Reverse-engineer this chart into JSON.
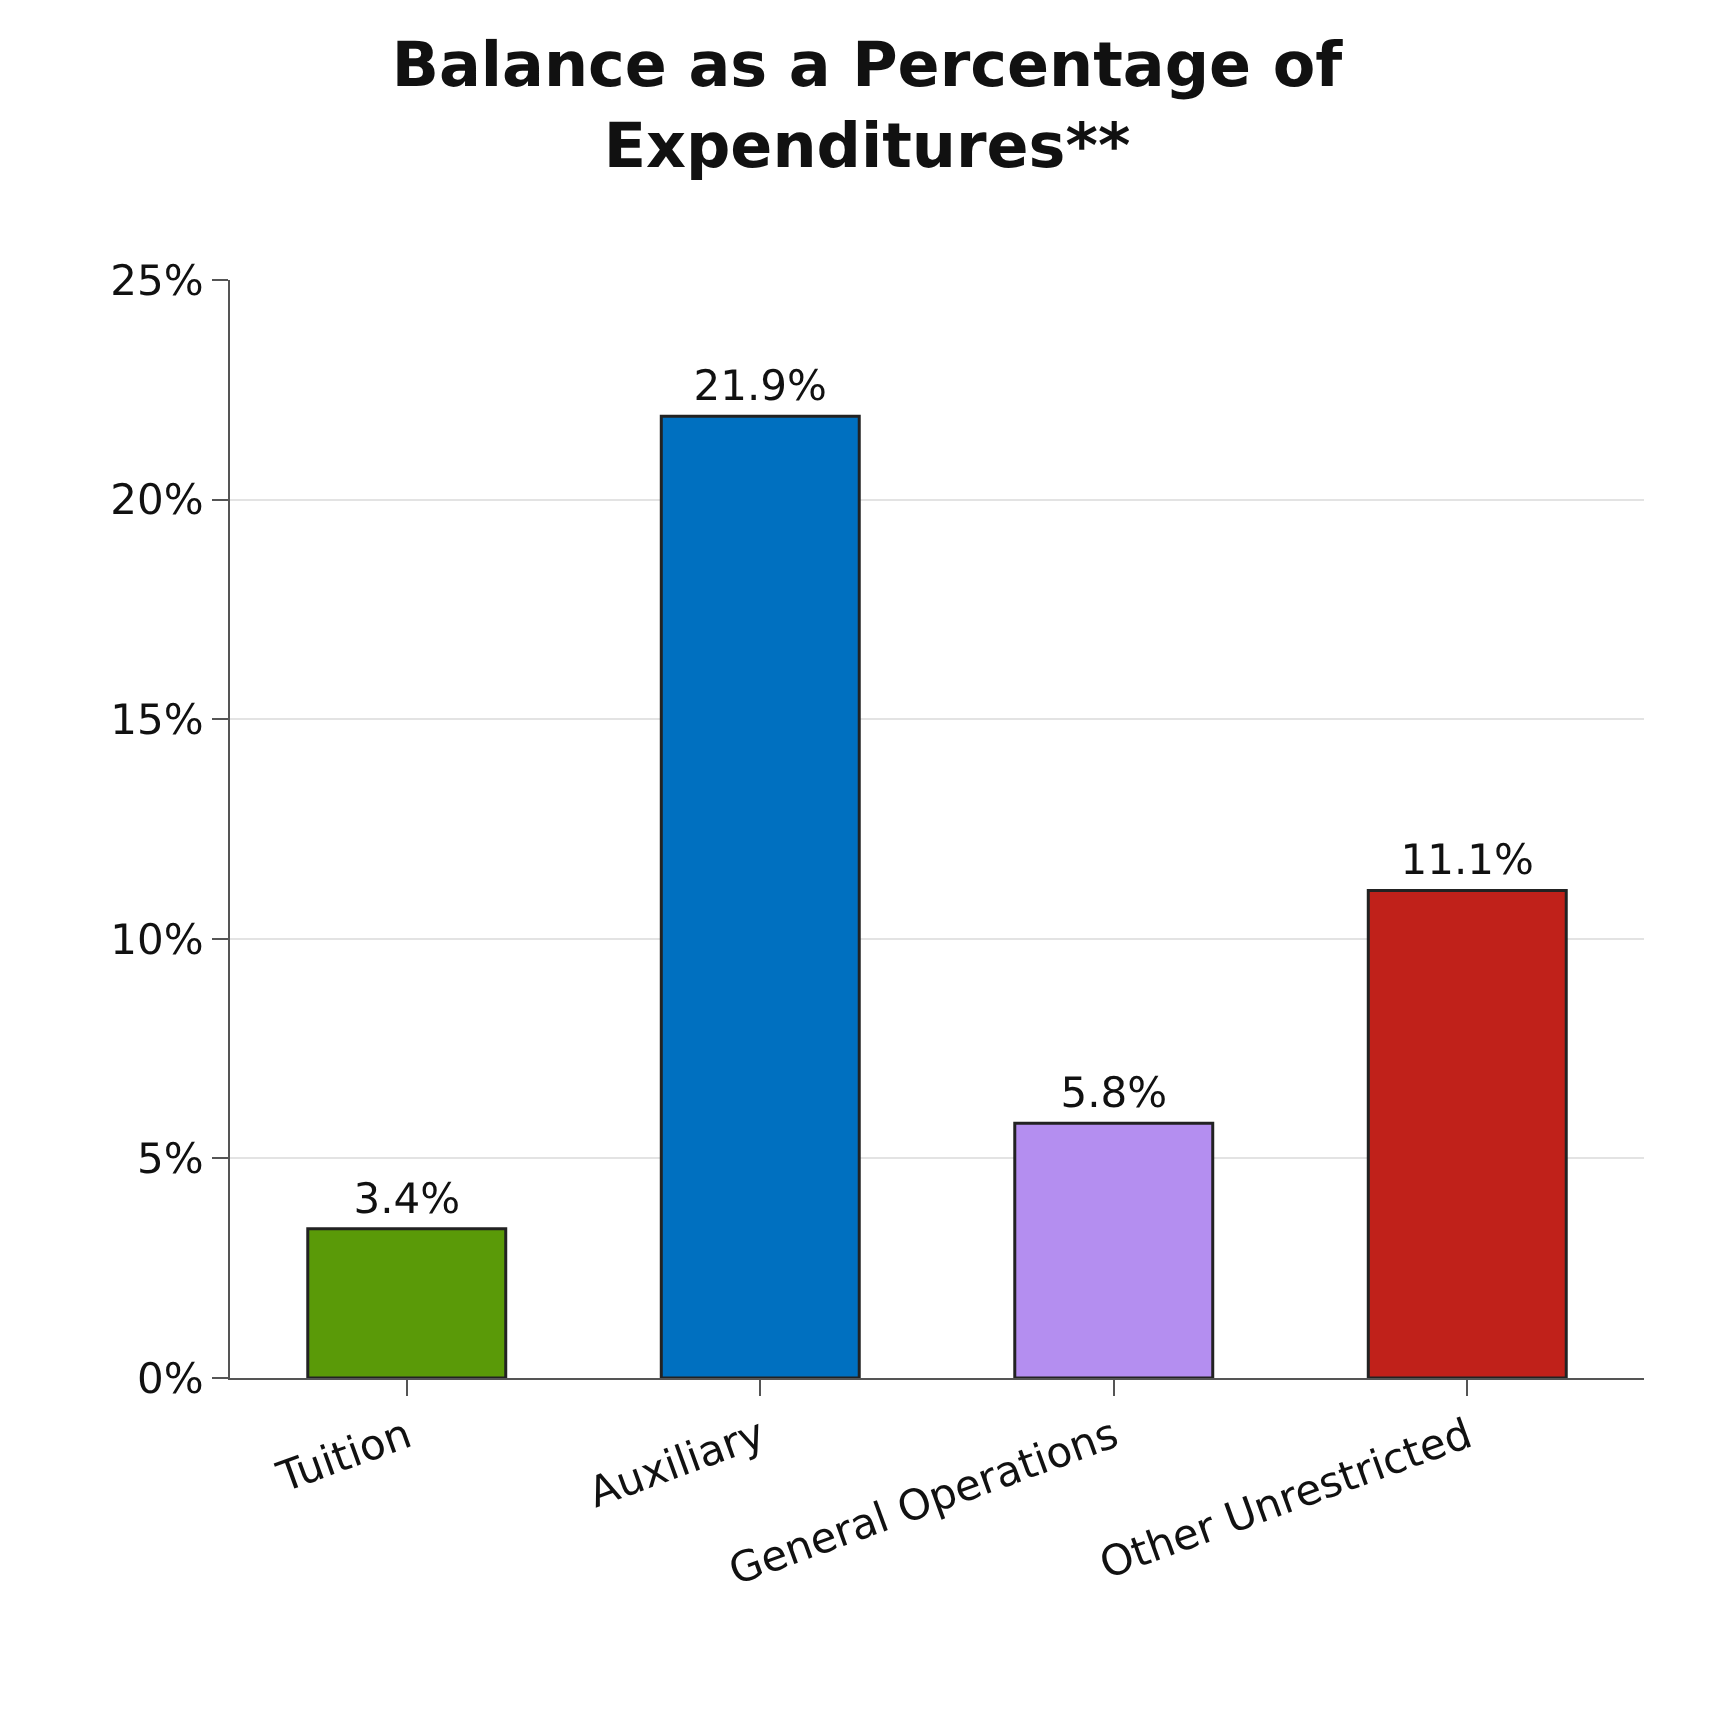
{
  "chart_data": {
    "type": "bar",
    "title": "Balance as a Percentage of Expenditures**",
    "categories": [
      "Tuition",
      "Auxiliary",
      "General Operations",
      "Other Unrestricted"
    ],
    "values": [
      3.4,
      21.9,
      5.8,
      11.1
    ],
    "colors": [
      "#5a9a08",
      "#0070c0",
      "#b48ef0",
      "#c0211a"
    ],
    "value_labels": [
      "3.4%",
      "21.9%",
      "5.8%",
      "11.1%"
    ],
    "ylim": [
      0,
      25
    ],
    "yticks": [
      {
        "value": 0,
        "label": "0%"
      },
      {
        "value": 5,
        "label": "5%"
      },
      {
        "value": 10,
        "label": "10%"
      },
      {
        "value": 15,
        "label": "15%"
      },
      {
        "value": 20,
        "label": "20%"
      },
      {
        "value": 25,
        "label": "25%"
      }
    ],
    "grid": "y",
    "legend": false
  }
}
